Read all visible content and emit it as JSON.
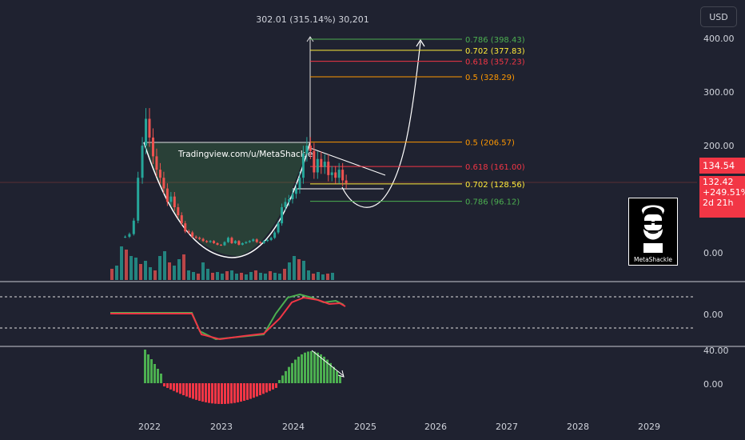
{
  "header": {
    "currency": "USD"
  },
  "price_axis": {
    "labels": [
      "400.00",
      "300.00",
      "200.00",
      "0.00"
    ],
    "last_price": "134.54",
    "current_price": "132.42",
    "change": "+249.51%",
    "countdown": "2d 21h"
  },
  "indicator1_axis": {
    "labels": [
      "0.00"
    ]
  },
  "indicator2_axis": {
    "labels": [
      "40.00",
      "0.00"
    ]
  },
  "time_axis": {
    "labels": [
      "2022",
      "2023",
      "2024",
      "2025",
      "2026",
      "2027",
      "2028",
      "2029"
    ]
  },
  "annotations": {
    "measure": "302.01 (315.14%) 30,201",
    "watermark": "Tradingview.com/u/MetaShackle",
    "logo_label": "MetaShackle"
  },
  "fib_levels": [
    {
      "label": "0.786 (398.43)",
      "price": 398.43,
      "color": "#4caf50"
    },
    {
      "label": "0.702 (377.83)",
      "price": 377.83,
      "color": "#ffeb3b"
    },
    {
      "label": "0.618 (357.23)",
      "price": 357.23,
      "color": "#f23645"
    },
    {
      "label": "0.5 (328.29)",
      "price": 328.29,
      "color": "#ff9800"
    },
    {
      "label": "0.5 (206.57)",
      "price": 206.57,
      "color": "#ff9800"
    },
    {
      "label": "0.618 (161.00)",
      "price": 161.0,
      "color": "#f23645"
    },
    {
      "label": "0.702 (128.56)",
      "price": 128.56,
      "color": "#ffeb3b"
    },
    {
      "label": "0.786 (96.12)",
      "price": 96.12,
      "color": "#4caf50"
    }
  ],
  "chart_data": {
    "type": "line",
    "title": "",
    "x_range": [
      2021.5,
      2029.6
    ],
    "ylim": [
      -30,
      440
    ],
    "series": [
      {
        "x": [
          2021.66,
          2021.72,
          2021.78,
          2021.84,
          2021.9,
          2021.95,
          2022.0,
          2022.05,
          2022.1,
          2022.15,
          2022.2,
          2022.25,
          2022.3,
          2022.35,
          2022.4,
          2022.45,
          2022.5,
          2022.55,
          2022.6,
          2022.65,
          2022.7,
          2022.75,
          2022.8,
          2022.85,
          2022.9,
          2022.95,
          2023.0,
          2023.05,
          2023.1,
          2023.15,
          2023.2,
          2023.25,
          2023.3,
          2023.35,
          2023.4,
          2023.45,
          2023.5,
          2023.55,
          2023.6,
          2023.65,
          2023.7,
          2023.75,
          2023.8,
          2023.85,
          2023.9,
          2023.95,
          2024.0,
          2024.05,
          2024.1,
          2024.15,
          2024.2,
          2024.25,
          2024.3,
          2024.35,
          2024.4,
          2024.45,
          2024.5,
          2024.55,
          2024.6,
          2024.65,
          2024.7,
          2024.75
        ],
        "values": [
          30,
          35,
          60,
          140,
          200,
          250,
          215,
          180,
          155,
          140,
          120,
          95,
          105,
          85,
          70,
          55,
          40,
          38,
          30,
          28,
          26,
          22,
          20,
          22,
          18,
          15,
          14,
          20,
          28,
          18,
          22,
          15,
          18,
          20,
          22,
          25,
          20,
          18,
          22,
          24,
          28,
          38,
          55,
          85,
          95,
          100,
          110,
          120,
          140,
          185,
          200,
          190,
          150,
          175,
          160,
          170,
          145,
          150,
          140,
          155,
          135,
          130
        ]
      }
    ],
    "volume": [
      14,
      18,
      42,
      38,
      30,
      28,
      20,
      24,
      16,
      12,
      30,
      36,
      22,
      18,
      26,
      32,
      12,
      10,
      8,
      22,
      14,
      9,
      10,
      8,
      11,
      12,
      8,
      9,
      7,
      10,
      12,
      9,
      8,
      11,
      9,
      8,
      14,
      22,
      30,
      26,
      24,
      12,
      8,
      10,
      7,
      8,
      9
    ],
    "fib_extension": {
      "from": 206.57,
      "to": 398.43
    }
  }
}
